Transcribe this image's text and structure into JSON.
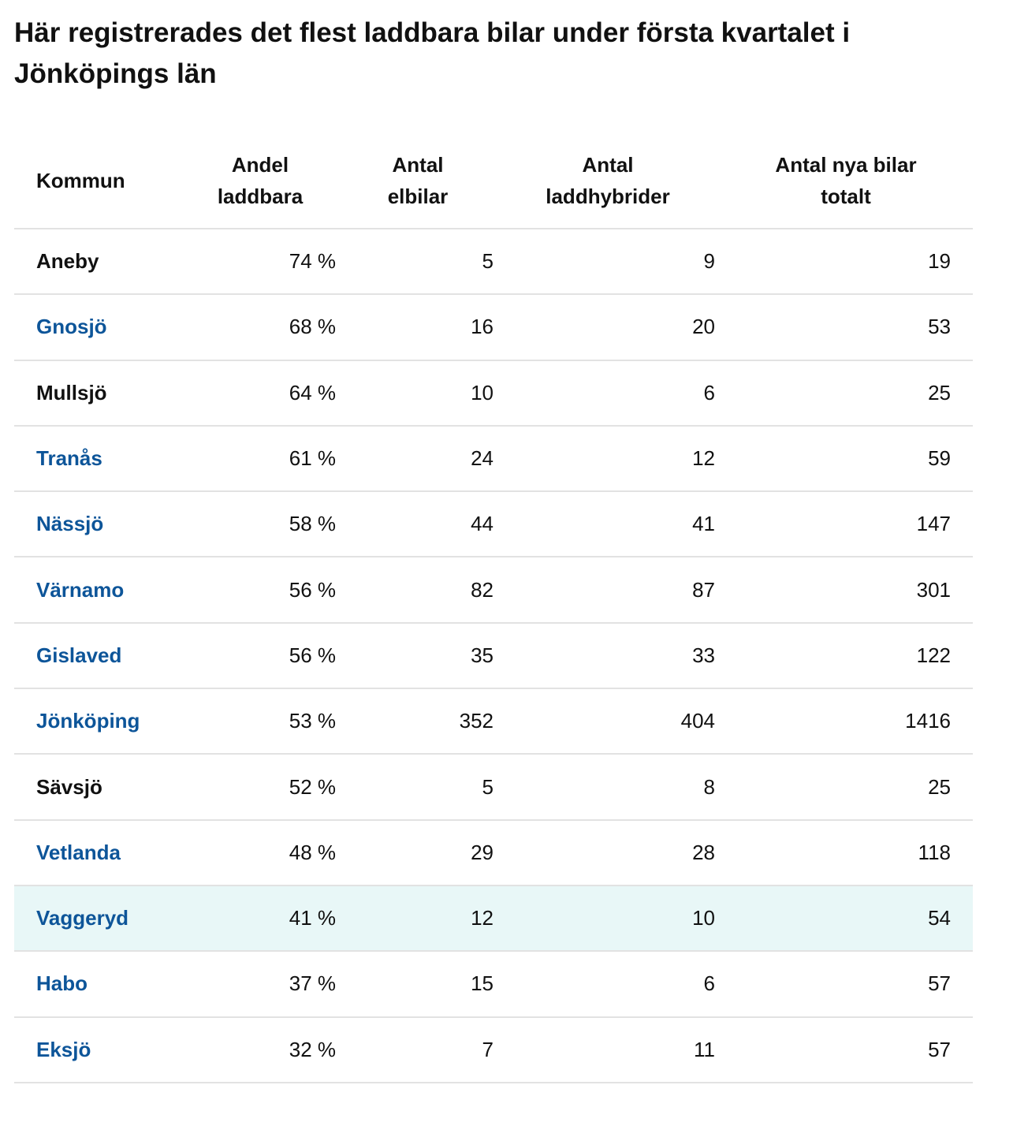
{
  "title": "Här registrerades det flest laddbara bilar under första kvartalet i Jönköpings län",
  "colors": {
    "link": "#0d5599",
    "highlight_row": "#e8f7f7",
    "divider": "#e2e2e2"
  },
  "table": {
    "headers": [
      {
        "lines": [
          "Kommun"
        ]
      },
      {
        "lines": [
          "Andel",
          "laddbara"
        ]
      },
      {
        "lines": [
          "Antal",
          "elbilar"
        ]
      },
      {
        "lines": [
          "Antal",
          "laddhybrider"
        ]
      },
      {
        "lines": [
          "Antal nya bilar",
          "totalt"
        ]
      }
    ],
    "rows": [
      {
        "kommun": "Aneby",
        "andel": "74 %",
        "elbilar": "5",
        "laddhybrider": "9",
        "totalt": "19",
        "link": false,
        "highlighted": false
      },
      {
        "kommun": "Gnosjö",
        "andel": "68 %",
        "elbilar": "16",
        "laddhybrider": "20",
        "totalt": "53",
        "link": true,
        "highlighted": false
      },
      {
        "kommun": "Mullsjö",
        "andel": "64 %",
        "elbilar": "10",
        "laddhybrider": "6",
        "totalt": "25",
        "link": false,
        "highlighted": false
      },
      {
        "kommun": "Tranås",
        "andel": "61 %",
        "elbilar": "24",
        "laddhybrider": "12",
        "totalt": "59",
        "link": true,
        "highlighted": false
      },
      {
        "kommun": "Nässjö",
        "andel": "58 %",
        "elbilar": "44",
        "laddhybrider": "41",
        "totalt": "147",
        "link": true,
        "highlighted": false
      },
      {
        "kommun": "Värnamo",
        "andel": "56 %",
        "elbilar": "82",
        "laddhybrider": "87",
        "totalt": "301",
        "link": true,
        "highlighted": false
      },
      {
        "kommun": "Gislaved",
        "andel": "56 %",
        "elbilar": "35",
        "laddhybrider": "33",
        "totalt": "122",
        "link": true,
        "highlighted": false
      },
      {
        "kommun": "Jönköping",
        "andel": "53 %",
        "elbilar": "352",
        "laddhybrider": "404",
        "totalt": "1416",
        "link": true,
        "highlighted": false
      },
      {
        "kommun": "Sävsjö",
        "andel": "52 %",
        "elbilar": "5",
        "laddhybrider": "8",
        "totalt": "25",
        "link": false,
        "highlighted": false
      },
      {
        "kommun": "Vetlanda",
        "andel": "48 %",
        "elbilar": "29",
        "laddhybrider": "28",
        "totalt": "118",
        "link": true,
        "highlighted": false
      },
      {
        "kommun": "Vaggeryd",
        "andel": "41 %",
        "elbilar": "12",
        "laddhybrider": "10",
        "totalt": "54",
        "link": true,
        "highlighted": true
      },
      {
        "kommun": "Habo",
        "andel": "37 %",
        "elbilar": "15",
        "laddhybrider": "6",
        "totalt": "57",
        "link": true,
        "highlighted": false
      },
      {
        "kommun": "Eksjö",
        "andel": "32 %",
        "elbilar": "7",
        "laddhybrider": "11",
        "totalt": "57",
        "link": true,
        "highlighted": false
      }
    ]
  }
}
